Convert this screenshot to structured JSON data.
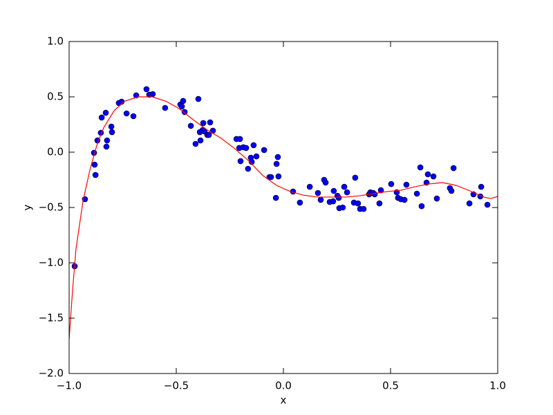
{
  "chart_data": {
    "type": "scatter",
    "xlabel": "x",
    "ylabel": "y",
    "xlim": [
      -1.0,
      1.0
    ],
    "ylim": [
      -2.0,
      1.0
    ],
    "xticks": [
      {
        "value": -1.0,
        "label": "−1.0"
      },
      {
        "value": -0.5,
        "label": "−0.5"
      },
      {
        "value": 0.0,
        "label": "0.0"
      },
      {
        "value": 0.5,
        "label": "0.5"
      },
      {
        "value": 1.0,
        "label": "1.0"
      }
    ],
    "yticks": [
      {
        "value": -2.0,
        "label": "−2.0"
      },
      {
        "value": -1.5,
        "label": "−1.5"
      },
      {
        "value": -1.0,
        "label": "−1.0"
      },
      {
        "value": -0.5,
        "label": "−0.5"
      },
      {
        "value": 0.0,
        "label": "0.0"
      },
      {
        "value": 0.5,
        "label": "0.5"
      },
      {
        "value": 1.0,
        "label": "1.0"
      }
    ],
    "grid": false,
    "series": [
      {
        "type": "scatter",
        "color": "#0000ff",
        "x": [
          -0.974,
          -0.926,
          -0.884,
          -0.881,
          -0.877,
          -0.868,
          -0.852,
          -0.848,
          -0.829,
          -0.826,
          -0.823,
          -0.803,
          -0.8,
          -0.768,
          -0.755,
          -0.732,
          -0.7,
          -0.687,
          -0.639,
          -0.626,
          -0.61,
          -0.552,
          -0.481,
          -0.474,
          -0.468,
          -0.461,
          -0.432,
          -0.41,
          -0.397,
          -0.39,
          -0.387,
          -0.377,
          -0.374,
          -0.368,
          -0.355,
          -0.348,
          -0.342,
          -0.329,
          -0.219,
          -0.206,
          -0.203,
          -0.2,
          -0.187,
          -0.174,
          -0.165,
          -0.152,
          -0.148,
          -0.139,
          -0.126,
          -0.09,
          -0.065,
          -0.058,
          -0.035,
          -0.032,
          -0.026,
          -0.023,
          0.045,
          0.077,
          0.123,
          0.161,
          0.174,
          0.19,
          0.197,
          0.216,
          0.232,
          0.235,
          0.252,
          0.258,
          0.261,
          0.277,
          0.284,
          0.297,
          0.329,
          0.335,
          0.348,
          0.358,
          0.374,
          0.4,
          0.406,
          0.419,
          0.426,
          0.448,
          0.455,
          0.503,
          0.529,
          0.535,
          0.548,
          0.565,
          0.574,
          0.623,
          0.639,
          0.645,
          0.668,
          0.674,
          0.7,
          0.716,
          0.777,
          0.784,
          0.794,
          0.868,
          0.887,
          0.919,
          0.923,
          0.952
        ],
        "values": [
          -1.031,
          -0.425,
          -0.006,
          -0.113,
          -0.206,
          0.106,
          0.175,
          0.313,
          0.356,
          0.05,
          0.106,
          0.231,
          0.181,
          0.444,
          0.456,
          0.35,
          0.325,
          0.513,
          0.569,
          0.519,
          0.525,
          0.4,
          0.431,
          0.413,
          0.463,
          0.363,
          0.238,
          0.075,
          0.481,
          0.181,
          0.106,
          0.2,
          0.263,
          0.188,
          0.156,
          0.156,
          0.269,
          0.194,
          0.119,
          0.038,
          0.119,
          -0.081,
          0.044,
          0.038,
          -0.15,
          -0.05,
          -0.088,
          0.063,
          -0.038,
          0.019,
          -0.225,
          -0.225,
          -0.413,
          -0.106,
          -0.044,
          -0.219,
          -0.356,
          -0.456,
          -0.313,
          -0.369,
          -0.431,
          -0.25,
          -0.275,
          -0.45,
          -0.444,
          -0.35,
          -0.394,
          -0.413,
          -0.506,
          -0.5,
          -0.313,
          -0.363,
          -0.456,
          -0.231,
          -0.463,
          -0.513,
          -0.513,
          -0.381,
          -0.363,
          -0.369,
          -0.381,
          -0.463,
          -0.344,
          -0.288,
          -0.363,
          -0.413,
          -0.425,
          -0.431,
          -0.294,
          -0.375,
          -0.138,
          -0.488,
          -0.275,
          -0.2,
          -0.219,
          -0.419,
          -0.325,
          -0.35,
          -0.144,
          -0.463,
          -0.381,
          -0.4,
          -0.313,
          -0.475
        ]
      },
      {
        "type": "line",
        "color": "#ff0000",
        "x": [
          -1.0,
          -0.984,
          -0.968,
          -0.935,
          -0.903,
          -0.871,
          -0.839,
          -0.79,
          -0.742,
          -0.677,
          -0.613,
          -0.548,
          -0.484,
          -0.419,
          -0.355,
          -0.29,
          -0.226,
          -0.161,
          -0.097,
          -0.032,
          0.032,
          0.097,
          0.161,
          0.226,
          0.29,
          0.355,
          0.419,
          0.484,
          0.548,
          0.613,
          0.677,
          0.742,
          0.806,
          0.871,
          0.935,
          0.968,
          1.0
        ],
        "values": [
          -1.69,
          -1.25,
          -0.875,
          -0.44,
          -0.16,
          0.06,
          0.22,
          0.375,
          0.46,
          0.5,
          0.5,
          0.46,
          0.39,
          0.29,
          0.2,
          0.125,
          0.03,
          -0.08,
          -0.21,
          -0.3,
          -0.356,
          -0.39,
          -0.406,
          -0.406,
          -0.406,
          -0.394,
          -0.375,
          -0.356,
          -0.344,
          -0.313,
          -0.288,
          -0.275,
          -0.3,
          -0.35,
          -0.406,
          -0.419,
          -0.4
        ]
      }
    ]
  }
}
